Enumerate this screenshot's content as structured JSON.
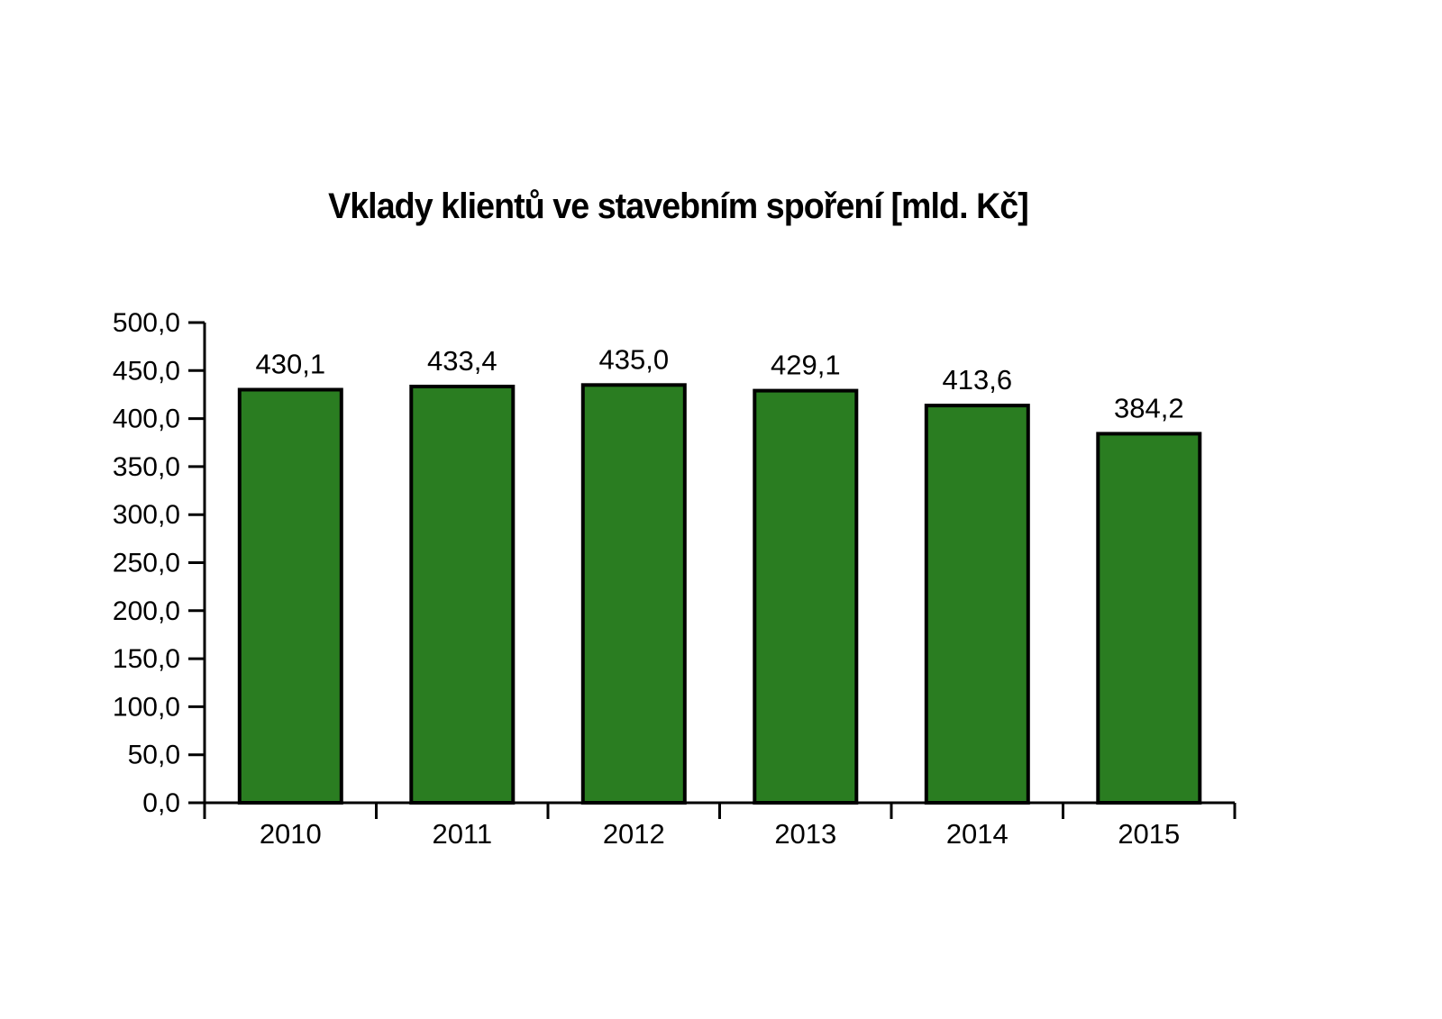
{
  "page": {
    "background_color": "#ffffff"
  },
  "chart_data": {
    "type": "bar",
    "title": "Vklady klientů ve stavebním spoření [mld. Kč]",
    "categories": [
      "2010",
      "2011",
      "2012",
      "2013",
      "2014",
      "2015"
    ],
    "values": [
      430.1,
      433.4,
      435.0,
      429.1,
      413.6,
      384.2
    ],
    "value_labels": [
      "430,1",
      "433,4",
      "435,0",
      "429,1",
      "413,6",
      "384,2"
    ],
    "xlabel": "",
    "ylabel": "",
    "ylim": [
      0,
      500
    ],
    "y_step": 50,
    "y_tick_labels": [
      "0,0",
      "50,0",
      "100,0",
      "150,0",
      "200,0",
      "250,0",
      "300,0",
      "350,0",
      "400,0",
      "450,0",
      "500,0"
    ],
    "grid": false,
    "legend_position": "none",
    "decimal_separator": ",",
    "colors": {
      "bar_fill": "#2a7d21",
      "bar_border": "#000000",
      "axis": "#000000",
      "text": "#000000"
    }
  }
}
